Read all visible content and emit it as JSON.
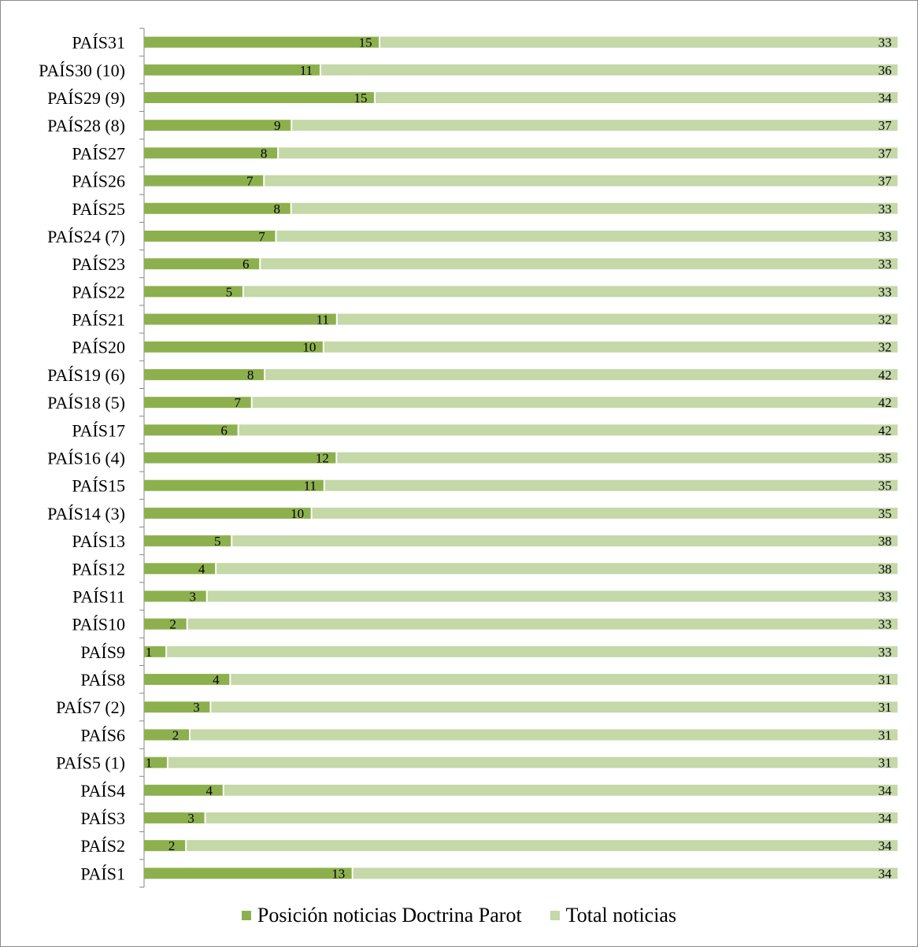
{
  "chart_data": {
    "type": "bar",
    "orientation": "horizontal",
    "stacked": true,
    "categories": [
      "PAÍS31",
      "PAÍS30 (10)",
      "PAÍS29 (9)",
      "PAÍS28 (8)",
      "PAÍS27",
      "PAÍS26",
      "PAÍS25",
      "PAÍS24 (7)",
      "PAÍS23",
      "PAÍS22",
      "PAÍS21",
      "PAÍS20",
      "PAÍS19 (6)",
      "PAÍS18 (5)",
      "PAÍS17",
      "PAÍS16 (4)",
      "PAÍS15",
      "PAÍS14 (3)",
      "PAÍS13",
      "PAÍS12",
      "PAÍS11",
      "PAÍS10",
      "PAÍS9",
      "PAÍS8",
      "PAÍS7 (2)",
      "PAÍS6",
      "PAÍS5 (1)",
      "PAÍS4",
      "PAÍS3",
      "PAÍS2",
      "PAÍS1"
    ],
    "series": [
      {
        "name": "Posición noticias Doctrina Parot",
        "color": "#8db04e",
        "values": [
          15,
          11,
          15,
          9,
          8,
          7,
          8,
          7,
          6,
          5,
          11,
          10,
          8,
          7,
          6,
          12,
          11,
          10,
          5,
          4,
          3,
          2,
          1,
          4,
          3,
          2,
          1,
          4,
          3,
          2,
          13
        ]
      },
      {
        "name": "Total noticias",
        "color": "#c4d8a8",
        "values": [
          33,
          36,
          34,
          37,
          37,
          37,
          33,
          33,
          33,
          33,
          32,
          32,
          42,
          42,
          42,
          35,
          35,
          35,
          38,
          38,
          33,
          33,
          33,
          31,
          31,
          31,
          31,
          34,
          34,
          34,
          34
        ]
      }
    ],
    "grid": false,
    "legend_position": "bottom"
  }
}
